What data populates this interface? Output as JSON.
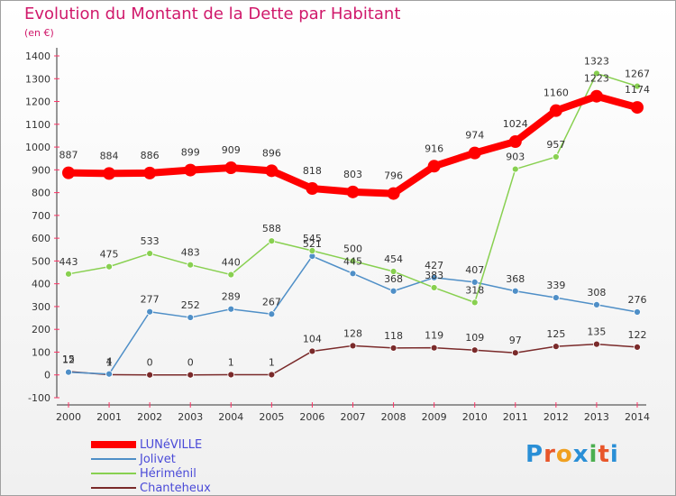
{
  "title": "Evolution du Montant de la Dette par Habitant",
  "subtitle": "(en €)",
  "logo": {
    "text": "Proxiti",
    "letters": [
      "P",
      "r",
      "o",
      "x",
      "i",
      "t",
      "i"
    ],
    "colors": [
      "#2a8fd6",
      "#e8562a",
      "#f0a020",
      "#2a8fd6",
      "#4caf50",
      "#e8562a",
      "#2a8fd6"
    ]
  },
  "chart_data": {
    "type": "line",
    "title": "Evolution du Montant de la Dette par Habitant",
    "ylabel": "(en €)",
    "xlabel": "",
    "x": [
      "2000",
      "2001",
      "2002",
      "2003",
      "2004",
      "2005",
      "2006",
      "2007",
      "2008",
      "2009",
      "2010",
      "2011",
      "2012",
      "2013",
      "2014"
    ],
    "ylim": [
      -100,
      1400
    ],
    "yticks": [
      "-100",
      "0",
      "100",
      "200",
      "300",
      "400",
      "500",
      "600",
      "700",
      "800",
      "900",
      "1000",
      "1100",
      "1200",
      "1300",
      "1400"
    ],
    "grid": false,
    "legend_position": "bottom-left",
    "series": [
      {
        "name": "LUNéVILLE",
        "color": "#ff0000",
        "width": 8,
        "marker": 7,
        "values": [
          887,
          884,
          886,
          899,
          909,
          896,
          818,
          803,
          796,
          916,
          974,
          1024,
          1160,
          1223,
          1174
        ],
        "labels": [
          "887",
          "884",
          "886",
          "899",
          "909",
          "896",
          "818",
          "803",
          "796",
          "916",
          "974",
          "1024",
          "1160",
          "1223",
          "1174"
        ]
      },
      {
        "name": "Jolivet",
        "color": "#4f8fc7",
        "width": 1.5,
        "marker": 3.5,
        "values": [
          12,
          4,
          277,
          252,
          289,
          267,
          521,
          445,
          368,
          427,
          407,
          368,
          339,
          308,
          276
        ],
        "labels": [
          "12",
          "4",
          "277",
          "252",
          "289",
          "267",
          "521",
          "445",
          "368",
          "427",
          "407",
          "368",
          "339",
          "308",
          "276"
        ]
      },
      {
        "name": "Hériménil",
        "color": "#88d050",
        "width": 1.5,
        "marker": 3.5,
        "values": [
          443,
          475,
          533,
          483,
          440,
          588,
          545,
          500,
          454,
          383,
          318,
          903,
          957,
          1323,
          1267
        ],
        "labels": [
          "443",
          "475",
          "533",
          "483",
          "440",
          "588",
          "545",
          "500",
          "454",
          "383",
          "318",
          "903",
          "957",
          "1323",
          "1267"
        ]
      },
      {
        "name": "Chanteheux",
        "color": "#7a2a2a",
        "width": 1.5,
        "marker": 3.5,
        "values": [
          15,
          1,
          0,
          0,
          1,
          1,
          104,
          128,
          118,
          119,
          109,
          97,
          125,
          135,
          122
        ],
        "labels": [
          "15",
          "1",
          "0",
          "0",
          "1",
          "1",
          "104",
          "128",
          "118",
          "119",
          "109",
          "97",
          "125",
          "135",
          "122"
        ]
      }
    ]
  }
}
